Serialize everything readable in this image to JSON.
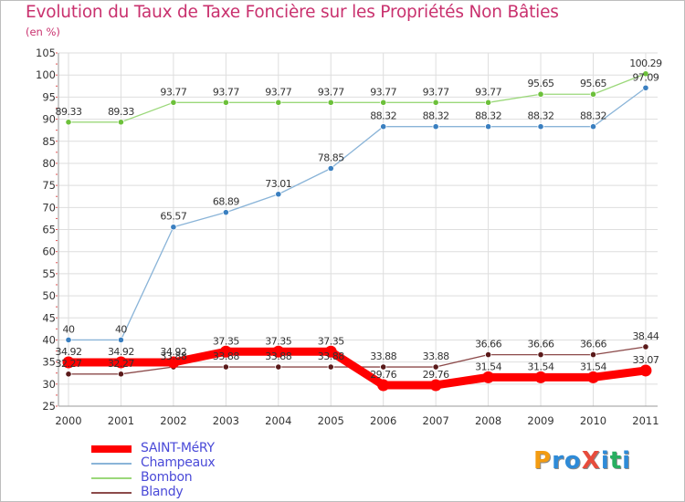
{
  "title": "Evolution du Taux de Taxe Foncière sur les Propriétés Non Bâties",
  "unit_label": "(en %)",
  "logo": {
    "text": "ProXiti",
    "letters": [
      "P",
      "r",
      "o",
      "X",
      "i",
      "t",
      "i"
    ],
    "colors": [
      "#f39c12",
      "#2e8bd8",
      "#2e8bd8",
      "#e74c3c",
      "#2e8bd8",
      "#27ae60",
      "#2e8bd8"
    ]
  },
  "chart_data": {
    "type": "line",
    "categories": [
      "2000",
      "2001",
      "2002",
      "2003",
      "2004",
      "2005",
      "2006",
      "2007",
      "2008",
      "2009",
      "2010",
      "2011"
    ],
    "ylim": [
      25,
      105
    ],
    "yticks": [
      25,
      30,
      35,
      40,
      45,
      50,
      55,
      60,
      65,
      70,
      75,
      80,
      85,
      90,
      95,
      100,
      105
    ],
    "grid": true,
    "legend_position": "bottom-left",
    "series": [
      {
        "name": "SAINT-MéRY",
        "color": "#ff0000",
        "highlight": true,
        "values": [
          34.92,
          34.92,
          34.92,
          37.35,
          37.35,
          37.35,
          29.76,
          29.76,
          31.54,
          31.54,
          31.54,
          33.07
        ],
        "labels": [
          "34.92",
          "34.92",
          "34.92",
          "37.35",
          "37.35",
          "37.35",
          "29.76",
          "29.76",
          "31.54",
          "31.54",
          "31.54",
          "33.07"
        ]
      },
      {
        "name": "Champeaux",
        "color": "#8ab4d8",
        "marker": "#3a7fc0",
        "values": [
          40,
          40,
          65.57,
          68.89,
          73.01,
          78.85,
          88.32,
          88.32,
          88.32,
          88.32,
          88.32,
          97.09
        ],
        "labels": [
          "40",
          "40",
          "65.57",
          "68.89",
          "73.01",
          "78.85",
          "88.32",
          "88.32",
          "88.32",
          "88.32",
          "88.32",
          "97.09"
        ]
      },
      {
        "name": "Bombon",
        "color": "#9bd87a",
        "marker": "#6cc03a",
        "values": [
          89.33,
          89.33,
          93.77,
          93.77,
          93.77,
          93.77,
          93.77,
          93.77,
          93.77,
          95.65,
          95.65,
          100.29
        ],
        "labels": [
          "89.33",
          "89.33",
          "93.77",
          "93.77",
          "93.77",
          "93.77",
          "93.77",
          "93.77",
          "93.77",
          "95.65",
          "95.65",
          "100.29"
        ]
      },
      {
        "name": "Blandy",
        "color": "#8c4a4a",
        "marker": "#5a1a1a",
        "values": [
          32.27,
          32.27,
          33.88,
          33.88,
          33.88,
          33.88,
          33.88,
          33.88,
          36.66,
          36.66,
          36.66,
          38.44
        ],
        "labels": [
          "32.27",
          "32.27",
          "33.88",
          "33.88",
          "33.88",
          "33.88",
          "33.88",
          "33.88",
          "36.66",
          "36.66",
          "36.66",
          "38.44"
        ]
      }
    ]
  }
}
